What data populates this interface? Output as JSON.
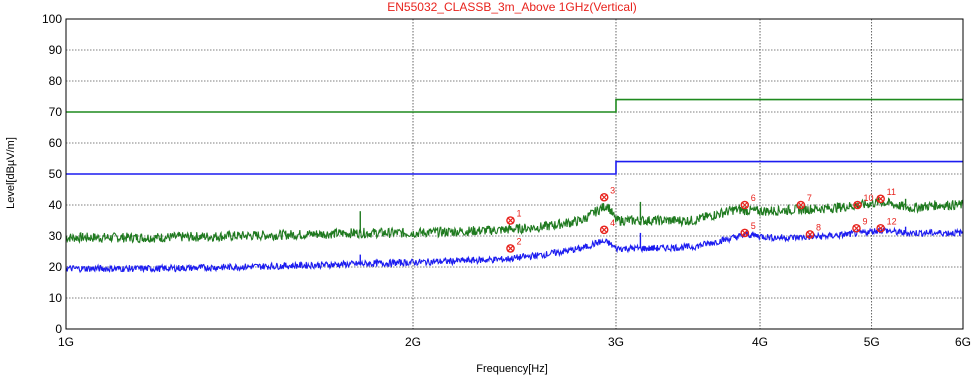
{
  "chart_data": {
    "type": "line",
    "title": "EN55032_CLASSB_3m_Above 1GHz(Vertical)",
    "xlabel": "Frequency[Hz]",
    "ylabel": "Level[dBµV/m]",
    "x_scale": "log",
    "xlim": [
      1000000000,
      6000000000
    ],
    "ylim": [
      0,
      100
    ],
    "y_ticks": [
      0,
      10,
      20,
      30,
      40,
      50,
      60,
      70,
      80,
      90,
      100
    ],
    "x_ticks": [
      {
        "value": 1000000000,
        "label": "1G"
      },
      {
        "value": 2000000000,
        "label": "2G"
      },
      {
        "value": 3000000000,
        "label": "3G"
      },
      {
        "value": 4000000000,
        "label": "4G"
      },
      {
        "value": 5000000000,
        "label": "5G"
      },
      {
        "value": 6000000000,
        "label": "6G"
      }
    ],
    "grid": true,
    "limit_lines": [
      {
        "color": "#1f8a1f",
        "segments": [
          [
            1000000000,
            3000000000,
            70
          ],
          [
            3000000000,
            6000000000,
            74
          ]
        ]
      },
      {
        "color": "#1c1cf0",
        "segments": [
          [
            1000000000,
            3000000000,
            50
          ],
          [
            3000000000,
            6000000000,
            54
          ]
        ]
      }
    ],
    "series": [
      {
        "color": "#1f7a1f",
        "x": [
          1000000000,
          1200000000,
          1400000000,
          1600000000,
          1800000000,
          2000000000,
          2200000000,
          2400000000,
          2600000000,
          2800000000,
          2900000000,
          2950000000,
          3000000000,
          3200000000,
          3500000000,
          3800000000,
          4000000000,
          4300000000,
          4600000000,
          4900000000,
          5100000000,
          5400000000,
          5700000000,
          6000000000
        ],
        "y": [
          29.5,
          29.5,
          30,
          30.5,
          31,
          31,
          31.5,
          32,
          33,
          35,
          38.5,
          40,
          35,
          35,
          35,
          38.5,
          38,
          38.5,
          39,
          40,
          41,
          39,
          40,
          40
        ]
      },
      {
        "color": "#1c1cf0",
        "x": [
          1000000000,
          1200000000,
          1400000000,
          1600000000,
          1800000000,
          2000000000,
          2200000000,
          2400000000,
          2600000000,
          2800000000,
          2900000000,
          2950000000,
          3000000000,
          3200000000,
          3500000000,
          3700000000,
          3900000000,
          4100000000,
          4300000000,
          4600000000,
          4900000000,
          5100000000,
          5300000000,
          5700000000,
          6000000000
        ],
        "y": [
          19.5,
          19.5,
          20,
          20.5,
          21,
          21.5,
          22,
          22.5,
          24,
          26,
          28,
          28,
          26,
          26,
          26.5,
          28.5,
          30.5,
          29.5,
          29.5,
          30,
          31,
          32,
          31,
          31,
          31
        ]
      }
    ],
    "spikes": [
      {
        "x": 1800000000,
        "y_green": 38,
        "y_blue": 24
      },
      {
        "x": 3150000000,
        "y_green": 41,
        "y_blue": 31
      },
      {
        "x": 5350000000,
        "y_green": 42,
        "y_blue": 33
      }
    ],
    "markers": [
      {
        "label": "1",
        "x": 2430000000,
        "y": 35
      },
      {
        "label": "2",
        "x": 2430000000,
        "y": 26
      },
      {
        "label": "3",
        "x": 2930000000,
        "y": 42.5
      },
      {
        "label": "4",
        "x": 2930000000,
        "y": 32
      },
      {
        "label": "5",
        "x": 3880000000,
        "y": 31
      },
      {
        "label": "6",
        "x": 3880000000,
        "y": 40
      },
      {
        "label": "7",
        "x": 4340000000,
        "y": 40
      },
      {
        "label": "8",
        "x": 4420000000,
        "y": 30.5
      },
      {
        "label": "9",
        "x": 4850000000,
        "y": 32.5
      },
      {
        "label": "10",
        "x": 4860000000,
        "y": 40
      },
      {
        "label": "11",
        "x": 5090000000,
        "y": 42
      },
      {
        "label": "12",
        "x": 5090000000,
        "y": 32.5
      }
    ]
  }
}
